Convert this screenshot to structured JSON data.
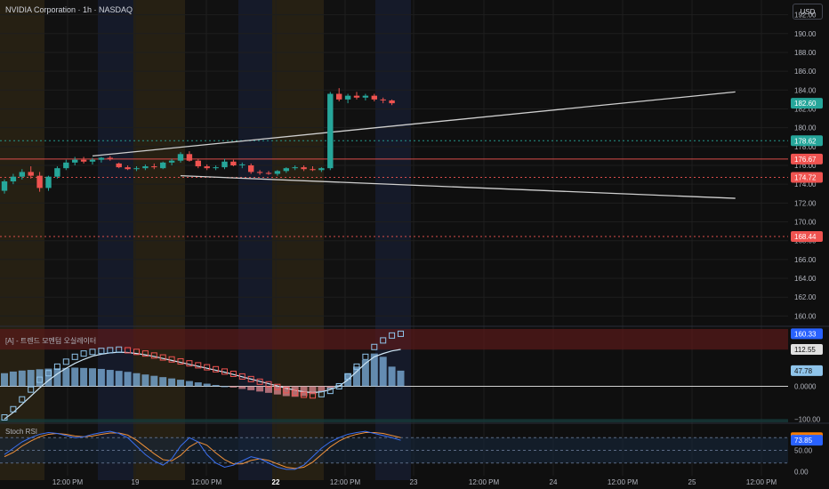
{
  "header": {
    "title": "NVIDIA Corporation · 1h · NASDAQ"
  },
  "currency": "USD",
  "colors": {
    "background": "#0f0f0f",
    "up": "#26a69a",
    "down": "#ef5350",
    "session_pre": "#3a3018",
    "session_post": "#1c2540",
    "trendline": "#cfcfcf",
    "level_green": "#26a69a",
    "level_red": "#ef5350"
  },
  "chart_data": [
    {
      "type": "candlestick",
      "title": "",
      "y_axis": {
        "side": "right",
        "ticks": [
          160,
          162,
          164,
          166,
          168,
          170,
          172,
          174,
          176,
          178,
          180,
          182,
          184,
          186,
          188,
          190,
          192
        ],
        "tick_labels": [
          "160.00",
          "162.00",
          "164.00",
          "166.00",
          "168.00",
          "170.00",
          "172.00",
          "174.00",
          "176.00",
          "178.00",
          "180.00",
          "182.00",
          "184.00",
          "186.00",
          "188.00",
          "190.00",
          "192.00"
        ],
        "range": [
          159,
          193
        ]
      },
      "x_axis": {
        "tick_labels": [
          "12:00 PM",
          "19",
          "12:00 PM",
          "22",
          "12:00 PM",
          "23",
          "12:00 PM",
          "24",
          "12:00 PM",
          "25",
          "12:00 PM"
        ],
        "bold_labels": [
          "22"
        ]
      },
      "candles": [
        [
          173.3,
          174.5,
          173.0,
          174.3
        ],
        [
          174.3,
          175.1,
          174.0,
          174.8
        ],
        [
          174.8,
          175.6,
          174.5,
          175.3
        ],
        [
          175.3,
          175.9,
          174.6,
          174.9
        ],
        [
          174.9,
          175.3,
          173.2,
          173.6
        ],
        [
          173.6,
          174.9,
          173.3,
          174.8
        ],
        [
          174.8,
          175.9,
          174.6,
          175.7
        ],
        [
          175.7,
          176.6,
          175.5,
          176.3
        ],
        [
          176.3,
          176.9,
          176.0,
          176.6
        ],
        [
          176.6,
          176.9,
          176.2,
          176.4
        ],
        [
          176.4,
          176.8,
          176.1,
          176.6
        ],
        [
          176.6,
          176.9,
          176.3,
          176.8
        ],
        [
          176.8,
          177.0,
          176.5,
          176.7
        ],
        [
          176.2,
          176.3,
          175.7,
          175.8
        ],
        [
          175.8,
          176.0,
          175.5,
          175.6
        ],
        [
          175.6,
          175.9,
          175.4,
          175.7
        ],
        [
          175.7,
          176.1,
          175.5,
          175.9
        ],
        [
          175.9,
          176.2,
          175.6,
          175.8
        ],
        [
          175.7,
          176.4,
          175.6,
          176.3
        ],
        [
          176.3,
          176.7,
          176.0,
          176.5
        ],
        [
          176.5,
          177.4,
          176.3,
          177.2
        ],
        [
          177.2,
          177.5,
          176.4,
          176.5
        ],
        [
          176.5,
          176.7,
          175.7,
          175.9
        ],
        [
          175.9,
          176.1,
          175.5,
          175.7
        ],
        [
          175.7,
          176.0,
          175.5,
          175.8
        ],
        [
          175.8,
          176.7,
          175.6,
          176.4
        ],
        [
          176.4,
          176.6,
          175.9,
          176.0
        ],
        [
          176.0,
          176.3,
          175.7,
          176.1
        ],
        [
          176.0,
          176.2,
          175.1,
          175.3
        ],
        [
          175.3,
          175.5,
          175.0,
          175.2
        ],
        [
          175.2,
          175.4,
          175.0,
          175.1
        ],
        [
          175.1,
          175.5,
          174.9,
          175.4
        ],
        [
          175.4,
          175.8,
          175.2,
          175.7
        ],
        [
          175.7,
          176.0,
          175.5,
          175.8
        ],
        [
          175.8,
          176.0,
          175.4,
          175.6
        ],
        [
          175.6,
          175.9,
          175.4,
          175.5
        ],
        [
          175.5,
          175.8,
          175.3,
          175.7
        ],
        [
          175.7,
          183.8,
          175.5,
          183.6
        ],
        [
          183.6,
          184.2,
          182.8,
          183.0
        ],
        [
          183.0,
          183.6,
          182.6,
          183.4
        ],
        [
          183.4,
          183.8,
          183.0,
          183.2
        ],
        [
          183.2,
          183.6,
          182.9,
          183.4
        ],
        [
          183.4,
          183.6,
          182.8,
          183.0
        ],
        [
          183.0,
          183.2,
          182.6,
          182.9
        ],
        [
          182.9,
          183.0,
          182.4,
          182.6
        ]
      ],
      "price_labels": [
        {
          "value": 182.6,
          "label": "182.60",
          "color": "#26a69a"
        },
        {
          "value": 178.62,
          "label": "178.62",
          "color": "#26a69a"
        },
        {
          "value": 176.67,
          "label": "176.67",
          "color": "#ef5350"
        },
        {
          "value": 174.72,
          "label": "174.72",
          "color": "#ef5350"
        },
        {
          "value": 168.44,
          "label": "168.44",
          "color": "#ef5350"
        }
      ],
      "horizontal_levels": [
        {
          "value": 178.62,
          "style": "dotted",
          "color": "#26a69a"
        },
        {
          "value": 176.67,
          "style": "solid",
          "color": "#ef5350"
        },
        {
          "value": 174.72,
          "style": "dotted",
          "color": "#ef5350"
        },
        {
          "value": 168.44,
          "style": "dotted",
          "color": "#ef5350"
        }
      ],
      "trendlines": [
        {
          "from": [
            10,
            177.0
          ],
          "to": [
            83,
            183.8
          ]
        },
        {
          "from": [
            20,
            174.9
          ],
          "to": [
            83,
            172.5
          ]
        }
      ]
    },
    {
      "type": "histogram",
      "label": "[A] - 트렌드 모멘텀 오실레이터",
      "y_axis_labels": [
        "160.33",
        "112.55",
        "47.78",
        "0.0000",
        "−100.00"
      ],
      "label_values": [
        160.33,
        112.55,
        47.78,
        0,
        -100
      ],
      "range": [
        -110,
        175
      ],
      "histogram": [
        40,
        45,
        48,
        50,
        52,
        54,
        55,
        56,
        57,
        56,
        55,
        53,
        50,
        47,
        44,
        40,
        36,
        32,
        28,
        24,
        20,
        16,
        12,
        8,
        4,
        0,
        -4,
        -8,
        -12,
        -16,
        -20,
        -25,
        -30,
        -32,
        -30,
        -24,
        -16,
        -8,
        4,
        40,
        60,
        80,
        100,
        90,
        60,
        47.78
      ],
      "fast_line": [
        -95,
        -70,
        -40,
        -10,
        20,
        40,
        60,
        75,
        90,
        100,
        105,
        108,
        110,
        112,
        110,
        105,
        100,
        94,
        88,
        82,
        76,
        70,
        64,
        58,
        52,
        45,
        38,
        30,
        22,
        14,
        6,
        -2,
        -12,
        -20,
        -26,
        -28,
        -24,
        -14,
        0,
        30,
        60,
        90,
        120,
        140,
        155,
        160.33
      ],
      "slow_line": [
        -100,
        -80,
        -55,
        -30,
        -5,
        18,
        38,
        55,
        70,
        82,
        92,
        98,
        102,
        104,
        103,
        100,
        96,
        91,
        85,
        79,
        73,
        67,
        61,
        55,
        49,
        43,
        36,
        29,
        22,
        15,
        8,
        1,
        -6,
        -12,
        -17,
        -19,
        -17,
        -10,
        0,
        20,
        45,
        70,
        90,
        100,
        108,
        112.55
      ]
    },
    {
      "type": "line",
      "label": "Stoch RSI",
      "y_axis_labels": [
        "80.01",
        "73.85",
        "50.00",
        "0.00"
      ],
      "label_values": [
        80.01,
        73.85,
        50,
        0
      ],
      "range": [
        -10,
        110
      ],
      "bands": [
        20,
        80
      ],
      "k_line": [
        40,
        55,
        70,
        80,
        88,
        92,
        90,
        85,
        80,
        82,
        88,
        92,
        95,
        90,
        80,
        60,
        40,
        25,
        15,
        30,
        60,
        80,
        70,
        40,
        20,
        10,
        15,
        25,
        35,
        30,
        20,
        10,
        5,
        5,
        15,
        35,
        55,
        70,
        80,
        88,
        92,
        95,
        90,
        85,
        80,
        73.85
      ],
      "d_line": [
        35,
        45,
        60,
        72,
        82,
        88,
        90,
        88,
        84,
        82,
        84,
        88,
        91,
        91,
        86,
        74,
        58,
        42,
        28,
        25,
        38,
        58,
        70,
        62,
        44,
        28,
        18,
        18,
        26,
        30,
        26,
        18,
        10,
        7,
        10,
        22,
        40,
        58,
        72,
        82,
        88,
        92,
        92,
        90,
        85,
        80.01
      ]
    }
  ]
}
